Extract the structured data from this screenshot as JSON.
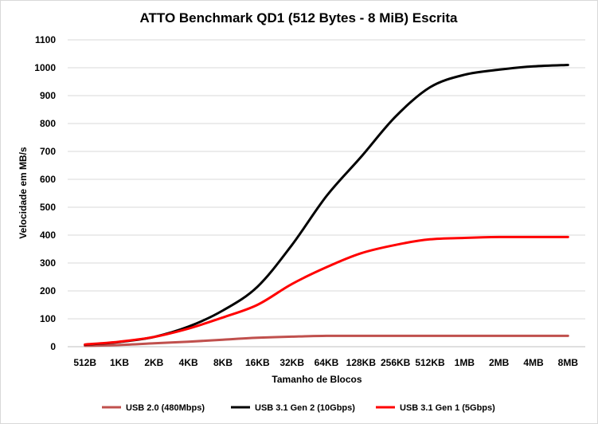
{
  "chart_data": {
    "type": "line",
    "title": "ATTO Benchmark QD1 (512 Bytes - 8 MiB) Escrita",
    "xlabel": "Tamanho de Blocos",
    "ylabel": "Velocidade em MB/s",
    "ylim": [
      0,
      1100
    ],
    "ytick_step": 100,
    "grid": "horizontal",
    "legend_position": "bottom",
    "categories": [
      "512B",
      "1KB",
      "2KB",
      "4KB",
      "8KB",
      "16KB",
      "32KB",
      "64KB",
      "128KB",
      "256KB",
      "512KB",
      "1MB",
      "2MB",
      "4MB",
      "8MB"
    ],
    "series": [
      {
        "name": "USB 2.0 (480Mbps)",
        "color": "#c0504d",
        "values": [
          3,
          6,
          12,
          18,
          25,
          32,
          36,
          39,
          39,
          39,
          39,
          39,
          39,
          39,
          39
        ]
      },
      {
        "name": "USB 3.1 Gen 2 (10Gbps)",
        "color": "#000000",
        "values": [
          7,
          17,
          35,
          72,
          130,
          215,
          365,
          540,
          680,
          825,
          930,
          975,
          993,
          1005,
          1010
        ]
      },
      {
        "name": "USB 3.1 Gen 1 (5Gbps)",
        "color": "#ff0000",
        "values": [
          8,
          18,
          35,
          65,
          105,
          150,
          225,
          285,
          335,
          365,
          385,
          390,
          393,
          393,
          393
        ]
      }
    ]
  }
}
